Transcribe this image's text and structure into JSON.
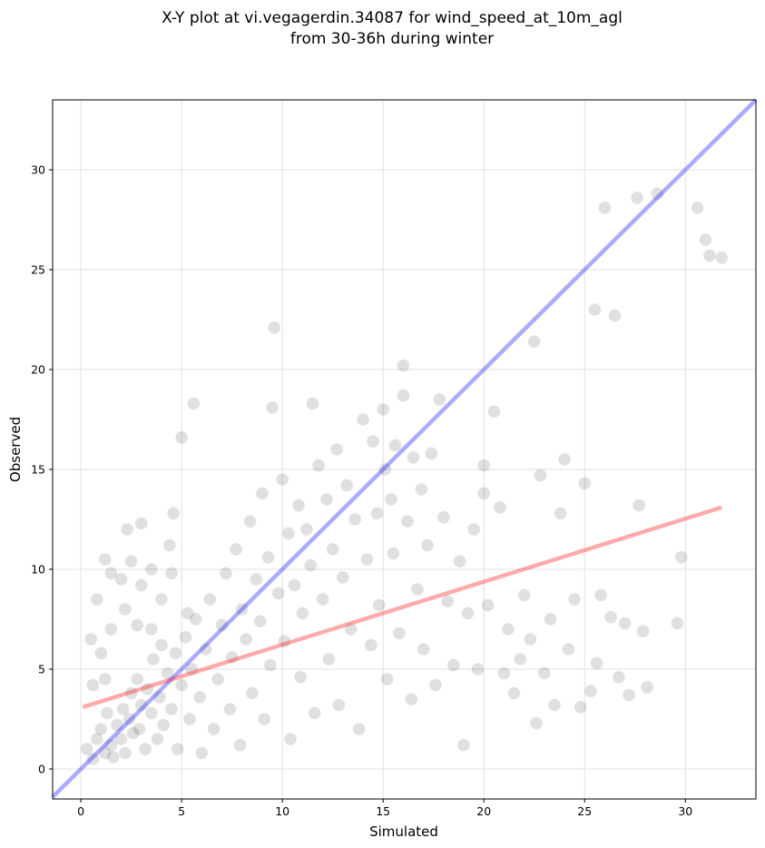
{
  "chart_data": {
    "type": "scatter",
    "title": "X-Y plot at vi.vegagerdin.34087 for wind_speed_at_10m_agl",
    "subtitle": "from 30-36h during winter",
    "xlabel": "Simulated",
    "ylabel": "Observed",
    "xlim": [
      -1.4,
      33.5
    ],
    "ylim": [
      -1.5,
      33.5
    ],
    "xticks": [
      0,
      5,
      10,
      15,
      20,
      25,
      30
    ],
    "yticks": [
      0,
      5,
      10,
      15,
      20,
      25,
      30
    ],
    "grid": true,
    "legend": "none",
    "colors": {
      "points": "#000000",
      "identity_line": "#0000ff",
      "fit_line": "#ff0000"
    },
    "series": [
      {
        "kind": "points",
        "points": [
          [
            1.2,
            10.5
          ],
          [
            1.5,
            9.8
          ],
          [
            0.8,
            8.5
          ],
          [
            0.5,
            6.5
          ],
          [
            1.5,
            7.0
          ],
          [
            1.0,
            5.8
          ],
          [
            0.6,
            4.2
          ],
          [
            1.2,
            4.5
          ],
          [
            2.3,
            12.0
          ],
          [
            3.0,
            12.3
          ],
          [
            2.5,
            10.4
          ],
          [
            3.5,
            10.0
          ],
          [
            2.0,
            9.5
          ],
          [
            3.0,
            9.2
          ],
          [
            2.2,
            8.0
          ],
          [
            2.8,
            7.2
          ],
          [
            3.5,
            7.0
          ],
          [
            4.0,
            8.5
          ],
          [
            4.4,
            11.2
          ],
          [
            4.6,
            12.8
          ],
          [
            5.0,
            16.6
          ],
          [
            5.6,
            18.3
          ],
          [
            4.5,
            9.8
          ],
          [
            5.3,
            7.8
          ],
          [
            0.3,
            1.0
          ],
          [
            0.6,
            0.5
          ],
          [
            0.8,
            1.5
          ],
          [
            1.0,
            2.0
          ],
          [
            1.2,
            0.8
          ],
          [
            1.3,
            2.8
          ],
          [
            1.5,
            1.2
          ],
          [
            1.6,
            0.6
          ],
          [
            1.8,
            2.2
          ],
          [
            2.0,
            1.5
          ],
          [
            2.1,
            3.0
          ],
          [
            2.2,
            0.8
          ],
          [
            2.4,
            2.5
          ],
          [
            2.5,
            3.8
          ],
          [
            2.6,
            1.8
          ],
          [
            2.8,
            4.5
          ],
          [
            2.9,
            2.0
          ],
          [
            3.0,
            3.2
          ],
          [
            3.2,
            1.0
          ],
          [
            3.3,
            4.0
          ],
          [
            3.5,
            2.8
          ],
          [
            3.6,
            5.5
          ],
          [
            3.8,
            1.5
          ],
          [
            3.9,
            3.6
          ],
          [
            4.0,
            6.2
          ],
          [
            4.1,
            2.2
          ],
          [
            4.3,
            4.8
          ],
          [
            4.5,
            3.0
          ],
          [
            4.7,
            5.8
          ],
          [
            4.8,
            1.0
          ],
          [
            5.0,
            4.2
          ],
          [
            5.2,
            6.6
          ],
          [
            5.4,
            2.5
          ],
          [
            5.5,
            5.0
          ],
          [
            5.7,
            7.5
          ],
          [
            5.9,
            3.6
          ],
          [
            6.0,
            0.8
          ],
          [
            6.2,
            6.0
          ],
          [
            6.4,
            8.5
          ],
          [
            6.6,
            2.0
          ],
          [
            6.8,
            4.5
          ],
          [
            7.0,
            7.2
          ],
          [
            7.2,
            9.8
          ],
          [
            7.4,
            3.0
          ],
          [
            7.5,
            5.6
          ],
          [
            7.7,
            11.0
          ],
          [
            7.9,
            1.2
          ],
          [
            8.0,
            8.0
          ],
          [
            8.2,
            6.5
          ],
          [
            8.4,
            12.4
          ],
          [
            8.5,
            3.8
          ],
          [
            8.7,
            9.5
          ],
          [
            8.9,
            7.4
          ],
          [
            9.0,
            13.8
          ],
          [
            9.1,
            2.5
          ],
          [
            9.3,
            10.6
          ],
          [
            9.4,
            5.2
          ],
          [
            9.6,
            22.1
          ],
          [
            9.5,
            18.1
          ],
          [
            9.8,
            8.8
          ],
          [
            10.0,
            14.5
          ],
          [
            10.1,
            6.4
          ],
          [
            10.3,
            11.8
          ],
          [
            10.4,
            1.5
          ],
          [
            10.6,
            9.2
          ],
          [
            10.8,
            13.2
          ],
          [
            10.9,
            4.6
          ],
          [
            11.0,
            7.8
          ],
          [
            11.2,
            12.0
          ],
          [
            11.4,
            10.2
          ],
          [
            11.5,
            18.3
          ],
          [
            11.6,
            2.8
          ],
          [
            11.8,
            15.2
          ],
          [
            12.0,
            8.5
          ],
          [
            12.2,
            13.5
          ],
          [
            12.3,
            5.5
          ],
          [
            12.5,
            11.0
          ],
          [
            12.7,
            16.0
          ],
          [
            12.8,
            3.2
          ],
          [
            13.0,
            9.6
          ],
          [
            13.2,
            14.2
          ],
          [
            13.4,
            7.0
          ],
          [
            13.6,
            12.5
          ],
          [
            13.8,
            2.0
          ],
          [
            14.0,
            17.5
          ],
          [
            14.2,
            10.5
          ],
          [
            14.4,
            6.2
          ],
          [
            14.5,
            16.4
          ],
          [
            14.7,
            12.8
          ],
          [
            14.8,
            8.2
          ],
          [
            15.0,
            18.0
          ],
          [
            15.1,
            15.0
          ],
          [
            15.2,
            4.5
          ],
          [
            15.4,
            13.5
          ],
          [
            15.5,
            10.8
          ],
          [
            15.6,
            16.2
          ],
          [
            15.8,
            6.8
          ],
          [
            16.0,
            20.2
          ],
          [
            16.0,
            18.7
          ],
          [
            16.2,
            12.4
          ],
          [
            16.4,
            3.5
          ],
          [
            16.5,
            15.6
          ],
          [
            16.7,
            9.0
          ],
          [
            16.9,
            14.0
          ],
          [
            17.0,
            6.0
          ],
          [
            17.2,
            11.2
          ],
          [
            17.4,
            15.8
          ],
          [
            17.6,
            4.2
          ],
          [
            17.8,
            18.5
          ],
          [
            18.0,
            12.6
          ],
          [
            18.2,
            8.4
          ],
          [
            18.5,
            5.2
          ],
          [
            18.8,
            10.4
          ],
          [
            19.0,
            1.2
          ],
          [
            19.2,
            7.8
          ],
          [
            19.5,
            12.0
          ],
          [
            19.7,
            5.0
          ],
          [
            20.0,
            15.2
          ],
          [
            20.0,
            13.8
          ],
          [
            20.2,
            8.2
          ],
          [
            20.5,
            17.9
          ],
          [
            20.8,
            13.1
          ],
          [
            21.0,
            4.8
          ],
          [
            21.2,
            7.0
          ],
          [
            21.5,
            3.8
          ],
          [
            21.8,
            5.5
          ],
          [
            22.0,
            8.7
          ],
          [
            22.3,
            6.5
          ],
          [
            22.5,
            21.4
          ],
          [
            22.6,
            2.3
          ],
          [
            22.8,
            14.7
          ],
          [
            23.0,
            4.8
          ],
          [
            23.3,
            7.5
          ],
          [
            23.5,
            3.2
          ],
          [
            23.8,
            12.8
          ],
          [
            24.0,
            15.5
          ],
          [
            24.2,
            6.0
          ],
          [
            24.5,
            8.5
          ],
          [
            24.8,
            3.1
          ],
          [
            25.0,
            14.3
          ],
          [
            25.3,
            3.9
          ],
          [
            25.5,
            23.0
          ],
          [
            25.6,
            5.3
          ],
          [
            25.8,
            8.7
          ],
          [
            26.0,
            28.1
          ],
          [
            26.3,
            7.6
          ],
          [
            26.5,
            22.7
          ],
          [
            26.7,
            4.6
          ],
          [
            27.0,
            7.3
          ],
          [
            27.2,
            3.7
          ],
          [
            27.6,
            28.6
          ],
          [
            27.7,
            13.2
          ],
          [
            27.9,
            6.9
          ],
          [
            28.1,
            4.1
          ],
          [
            28.6,
            28.8
          ],
          [
            29.6,
            7.3
          ],
          [
            29.8,
            10.6
          ],
          [
            30.6,
            28.1
          ],
          [
            31.0,
            26.5
          ],
          [
            31.2,
            25.7
          ],
          [
            31.8,
            25.6
          ]
        ]
      },
      {
        "kind": "line",
        "role": "identity",
        "points": [
          [
            -1.4,
            -1.4
          ],
          [
            33.5,
            33.5
          ]
        ]
      },
      {
        "kind": "line",
        "role": "fit",
        "points": [
          [
            0.1,
            3.1
          ],
          [
            31.8,
            13.1
          ]
        ]
      }
    ]
  }
}
